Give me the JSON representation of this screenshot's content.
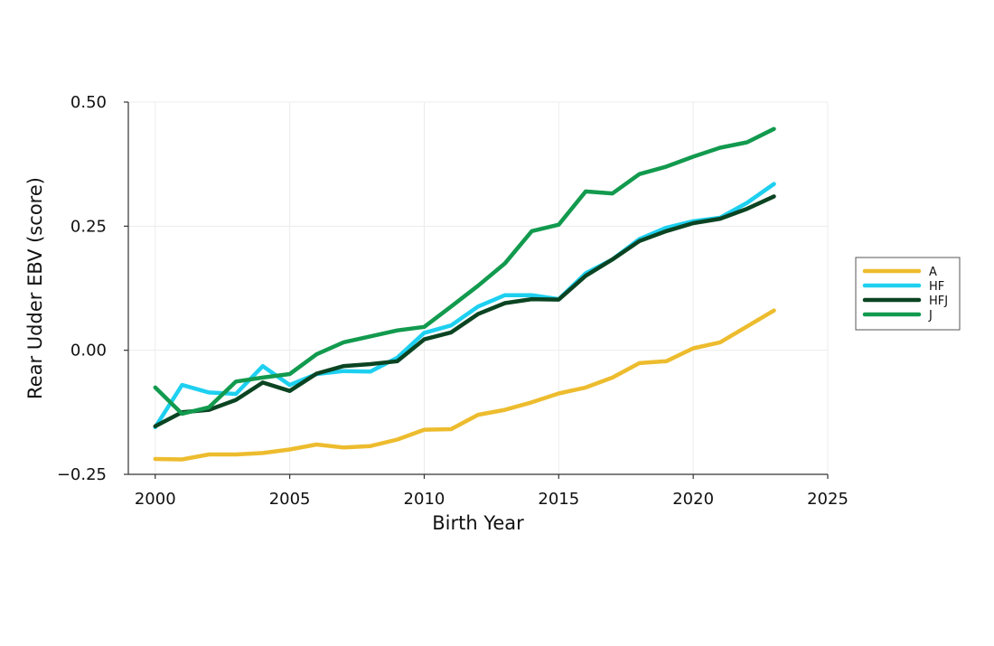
{
  "chart_data": {
    "type": "line",
    "xlabel": "Birth Year",
    "ylabel": "Rear Udder EBV (score)",
    "xlim": [
      1999,
      2025
    ],
    "ylim": [
      -0.25,
      0.5
    ],
    "xticks": [
      2000,
      2005,
      2010,
      2015,
      2020,
      2025
    ],
    "yticks": [
      -0.25,
      0.0,
      0.25,
      0.5
    ],
    "ytick_labels": [
      "−0.25",
      "0.00",
      "0.25",
      "0.50"
    ],
    "grid": true,
    "legend_position": "right",
    "x": [
      2000,
      2001,
      2002,
      2003,
      2004,
      2005,
      2006,
      2007,
      2008,
      2009,
      2010,
      2011,
      2012,
      2013,
      2014,
      2015,
      2016,
      2017,
      2018,
      2019,
      2020,
      2021,
      2022,
      2023
    ],
    "series": [
      {
        "name": "A",
        "color": "#EDBC2E",
        "values": [
          -0.219,
          -0.22,
          -0.21,
          -0.21,
          -0.207,
          -0.2,
          -0.19,
          -0.196,
          -0.193,
          -0.18,
          -0.16,
          -0.159,
          -0.13,
          -0.12,
          -0.105,
          -0.087,
          -0.075,
          -0.055,
          -0.026,
          -0.022,
          0.004,
          0.016,
          0.048,
          0.08
        ]
      },
      {
        "name": "HF",
        "color": "#1ED0F0",
        "values": [
          -0.155,
          -0.07,
          -0.085,
          -0.088,
          -0.032,
          -0.07,
          -0.048,
          -0.042,
          -0.043,
          -0.015,
          0.035,
          0.05,
          0.088,
          0.111,
          0.111,
          0.103,
          0.155,
          0.183,
          0.224,
          0.247,
          0.26,
          0.267,
          0.297,
          0.335
        ]
      },
      {
        "name": "HFJ",
        "color": "#0B4422",
        "values": [
          -0.153,
          -0.125,
          -0.12,
          -0.1,
          -0.065,
          -0.082,
          -0.047,
          -0.032,
          -0.028,
          -0.022,
          0.022,
          0.036,
          0.073,
          0.095,
          0.103,
          0.102,
          0.15,
          0.183,
          0.22,
          0.24,
          0.256,
          0.265,
          0.285,
          0.31
        ]
      },
      {
        "name": "J",
        "color": "#129A4E",
        "values": [
          -0.075,
          -0.128,
          -0.115,
          -0.063,
          -0.055,
          -0.048,
          -0.008,
          0.016,
          0.028,
          0.04,
          0.047,
          0.088,
          0.13,
          0.175,
          0.24,
          0.253,
          0.32,
          0.316,
          0.355,
          0.37,
          0.39,
          0.408,
          0.419,
          0.446
        ]
      }
    ]
  }
}
